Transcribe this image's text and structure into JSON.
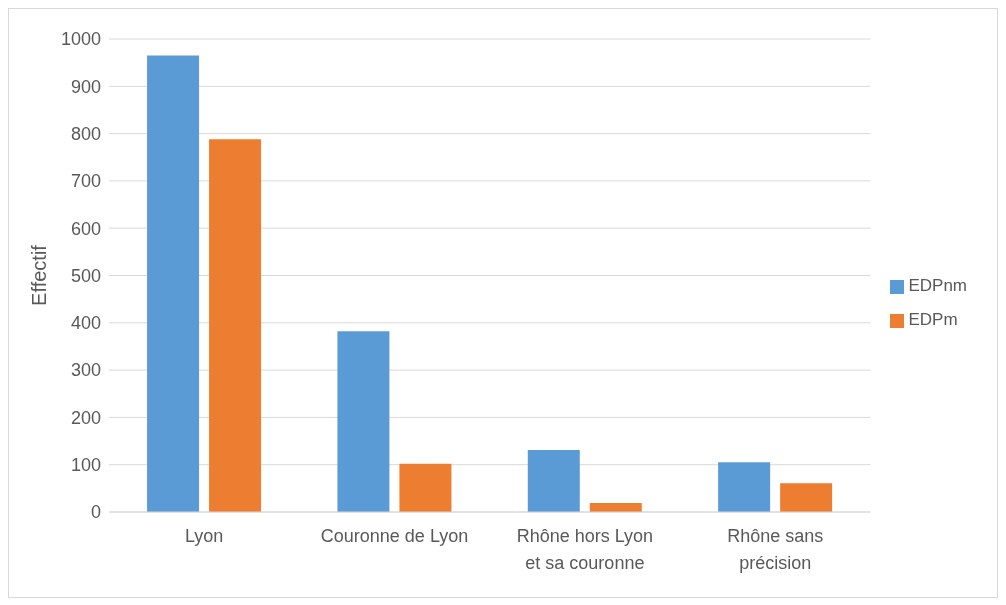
{
  "chart_data": {
    "type": "bar",
    "ylabel": "Effectif",
    "categories": [
      "Lyon",
      "Couronne de Lyon",
      "Rhône hors Lyon et sa couronne",
      "Rhône sans précision"
    ],
    "series": [
      {
        "name": "EDPnm",
        "color": "#5b9bd5",
        "values": [
          965,
          382,
          131,
          105
        ]
      },
      {
        "name": "EDPm",
        "color": "#ed7d31",
        "values": [
          788,
          102,
          19,
          61
        ]
      }
    ],
    "ylim": [
      0,
      1000
    ],
    "yticks": [
      0,
      100,
      200,
      300,
      400,
      500,
      600,
      700,
      800,
      900,
      1000
    ],
    "grid": "y",
    "legend": "right"
  }
}
